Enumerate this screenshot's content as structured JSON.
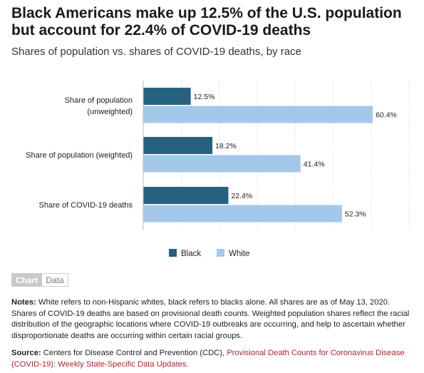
{
  "header": {
    "title": "Black Americans make up 12.5% of the U.S. population but account for 22.4% of COVID-19 deaths",
    "subtitle": "Shares of population vs. shares of COVID-19 deaths, by race"
  },
  "chart_data": {
    "type": "bar",
    "orientation": "horizontal",
    "categories": [
      [
        "Share of population",
        "(unweighted)"
      ],
      [
        "Share of population (weighted)"
      ],
      [
        "Share of COVID-19 deaths"
      ]
    ],
    "series": [
      {
        "name": "Black",
        "color": "#26627f",
        "values": [
          12.5,
          18.2,
          22.4
        ]
      },
      {
        "name": "White",
        "color": "#a3c8ea",
        "values": [
          60.4,
          41.4,
          52.3
        ]
      }
    ],
    "value_suffix": "%",
    "xlim": [
      0,
      70
    ],
    "grid": true,
    "legend_position": "bottom"
  },
  "toggle": {
    "chart_label": "Chart",
    "data_label": "Data"
  },
  "notes": {
    "label": "Notes:",
    "text": " White refers to non-Hispanic whites, black refers to blacks alone. All shares are as of May 13, 2020. Shares of COVID-19 deaths are based on provisional death counts. Weighted population shares reflect the racial distribution of the geographic locations where COVID-19 outbreaks are occurring, and help to ascertain whether disproportionate deaths are occurring within certain racial groups."
  },
  "source": {
    "label": "Source:",
    "text": " Centers for Disease Control and Prevention (CDC), ",
    "link_text": "Provisional Death Counts for Coronavirus Disease (COVID-19): Weekly State-Specific Data Updates",
    "end": "."
  }
}
